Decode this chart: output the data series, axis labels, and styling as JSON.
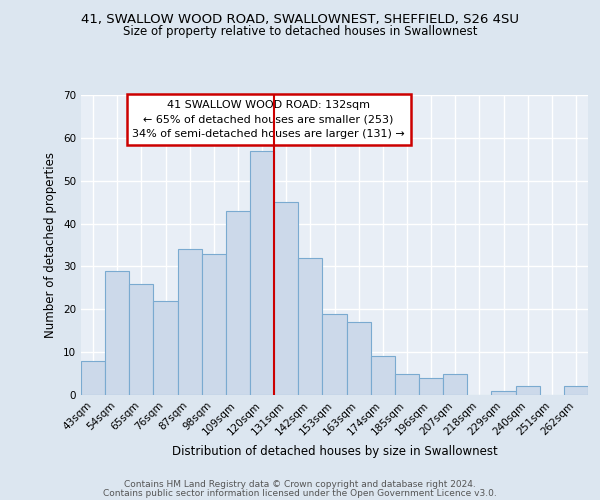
{
  "title1": "41, SWALLOW WOOD ROAD, SWALLOWNEST, SHEFFIELD, S26 4SU",
  "title2": "Size of property relative to detached houses in Swallownest",
  "xlabel": "Distribution of detached houses by size in Swallownest",
  "ylabel": "Number of detached properties",
  "categories": [
    "43sqm",
    "54sqm",
    "65sqm",
    "76sqm",
    "87sqm",
    "98sqm",
    "109sqm",
    "120sqm",
    "131sqm",
    "142sqm",
    "153sqm",
    "163sqm",
    "174sqm",
    "185sqm",
    "196sqm",
    "207sqm",
    "218sqm",
    "229sqm",
    "240sqm",
    "251sqm",
    "262sqm"
  ],
  "values": [
    8,
    29,
    26,
    22,
    34,
    33,
    43,
    57,
    45,
    32,
    19,
    17,
    9,
    5,
    4,
    5,
    0,
    1,
    2,
    0,
    2
  ],
  "bar_color": "#ccd9ea",
  "bar_edge_color": "#7aaad0",
  "vline_color": "#cc0000",
  "vline_index": 8,
  "annotation_line1": "41 SWALLOW WOOD ROAD: 132sqm",
  "annotation_line2": "← 65% of detached houses are smaller (253)",
  "annotation_line3": "34% of semi-detached houses are larger (131) →",
  "annotation_box_color": "white",
  "annotation_box_edge_color": "#cc0000",
  "ylim": [
    0,
    70
  ],
  "yticks": [
    0,
    10,
    20,
    30,
    40,
    50,
    60,
    70
  ],
  "footer1": "Contains HM Land Registry data © Crown copyright and database right 2024.",
  "footer2": "Contains public sector information licensed under the Open Government Licence v3.0.",
  "bg_color": "#dce6f0",
  "plot_bg_color": "#e8eef6",
  "grid_color": "#ffffff"
}
